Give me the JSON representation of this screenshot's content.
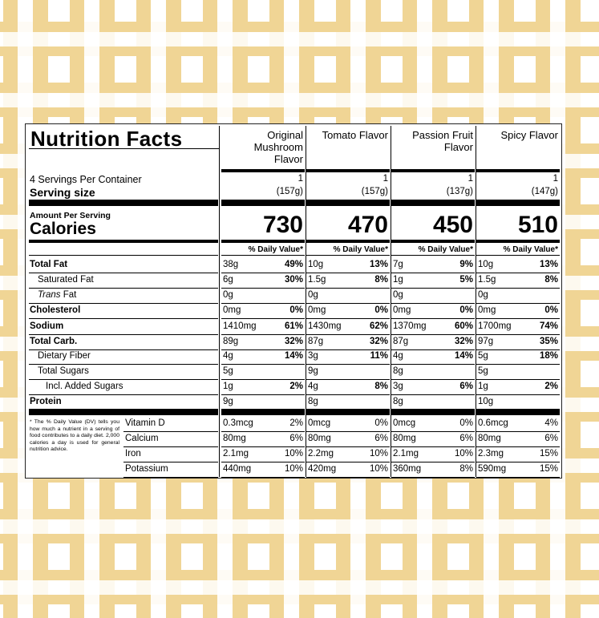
{
  "title": "Nutrition Facts",
  "servings_per_container": "4 Servings Per Container",
  "serving_size_label": "Serving size",
  "amount_per_serving": "Amount Per Serving",
  "calories_label": "Calories",
  "dv_header": "% Daily Value*",
  "footnote": "* The % Daily Value (DV) tells you how much a nutrient in a serving of food contributes to a daily diet. 2,000 calories a day is used for general nutrition advice.",
  "nutrient_labels": {
    "total_fat": "Total Fat",
    "saturated_fat": "Saturated Fat",
    "trans_fat_italic": "Trans",
    "trans_fat_rest": " Fat",
    "cholesterol": "Cholesterol",
    "sodium": "Sodium",
    "total_carb": "Total Carb.",
    "dietary_fiber": "Dietary Fiber",
    "total_sugars": "Total Sugars",
    "added_sugars": "Incl. Added Sugars",
    "protein": "Protein",
    "vitamin_d": "Vitamin D",
    "calcium": "Calcium",
    "iron": "Iron",
    "potassium": "Potassium"
  },
  "flavors": [
    {
      "name_lines": [
        "Original",
        "Mushroom",
        "Flavor"
      ],
      "servings": "1",
      "serving_size": "(157g)",
      "calories": "730",
      "total_fat": [
        "38g",
        "49%"
      ],
      "saturated_fat": [
        "6g",
        "30%"
      ],
      "trans_fat": [
        "0g",
        ""
      ],
      "cholesterol": [
        "0mg",
        "0%"
      ],
      "sodium": [
        "1410mg",
        "61%"
      ],
      "total_carb": [
        "89g",
        "32%"
      ],
      "dietary_fiber": [
        "4g",
        "14%"
      ],
      "total_sugars": [
        "5g",
        ""
      ],
      "added_sugars": [
        "1g",
        "2%"
      ],
      "protein": [
        "9g",
        ""
      ],
      "vitamin_d": [
        "0.3mcg",
        "2%"
      ],
      "calcium": [
        "80mg",
        "6%"
      ],
      "iron": [
        "2.1mg",
        "10%"
      ],
      "potassium": [
        "440mg",
        "10%"
      ]
    },
    {
      "name_lines": [
        "Tomato Flavor"
      ],
      "servings": "1",
      "serving_size": "(157g)",
      "calories": "470",
      "total_fat": [
        "10g",
        "13%"
      ],
      "saturated_fat": [
        "1.5g",
        "8%"
      ],
      "trans_fat": [
        "0g",
        ""
      ],
      "cholesterol": [
        "0mg",
        "0%"
      ],
      "sodium": [
        "1430mg",
        "62%"
      ],
      "total_carb": [
        "87g",
        "32%"
      ],
      "dietary_fiber": [
        "3g",
        "11%"
      ],
      "total_sugars": [
        "9g",
        ""
      ],
      "added_sugars": [
        "4g",
        "8%"
      ],
      "protein": [
        "8g",
        ""
      ],
      "vitamin_d": [
        "0mcg",
        "0%"
      ],
      "calcium": [
        "80mg",
        "6%"
      ],
      "iron": [
        "2.2mg",
        "10%"
      ],
      "potassium": [
        "420mg",
        "10%"
      ]
    },
    {
      "name_lines": [
        "Passion Fruit",
        "Flavor"
      ],
      "servings": "1",
      "serving_size": "(137g)",
      "calories": "450",
      "total_fat": [
        "7g",
        "9%"
      ],
      "saturated_fat": [
        "1g",
        "5%"
      ],
      "trans_fat": [
        "0g",
        ""
      ],
      "cholesterol": [
        "0mg",
        "0%"
      ],
      "sodium": [
        "1370mg",
        "60%"
      ],
      "total_carb": [
        "87g",
        "32%"
      ],
      "dietary_fiber": [
        "4g",
        "14%"
      ],
      "total_sugars": [
        "8g",
        ""
      ],
      "added_sugars": [
        "3g",
        "6%"
      ],
      "protein": [
        "8g",
        ""
      ],
      "vitamin_d": [
        "0mcg",
        "0%"
      ],
      "calcium": [
        "80mg",
        "6%"
      ],
      "iron": [
        "2.1mg",
        "10%"
      ],
      "potassium": [
        "360mg",
        "8%"
      ]
    },
    {
      "name_lines": [
        "Spicy Flavor"
      ],
      "servings": "1",
      "serving_size": "(147g)",
      "calories": "510",
      "total_fat": [
        "10g",
        "13%"
      ],
      "saturated_fat": [
        "1.5g",
        "8%"
      ],
      "trans_fat": [
        "0g",
        ""
      ],
      "cholesterol": [
        "0mg",
        "0%"
      ],
      "sodium": [
        "1700mg",
        "74%"
      ],
      "total_carb": [
        "97g",
        "35%"
      ],
      "dietary_fiber": [
        "5g",
        "18%"
      ],
      "total_sugars": [
        "5g",
        ""
      ],
      "added_sugars": [
        "1g",
        "2%"
      ],
      "protein": [
        "10g",
        ""
      ],
      "vitamin_d": [
        "0.6mcg",
        "4%"
      ],
      "calcium": [
        "80mg",
        "6%"
      ],
      "iron": [
        "2.3mg",
        "15%"
      ],
      "potassium": [
        "590mg",
        "15%"
      ]
    }
  ]
}
